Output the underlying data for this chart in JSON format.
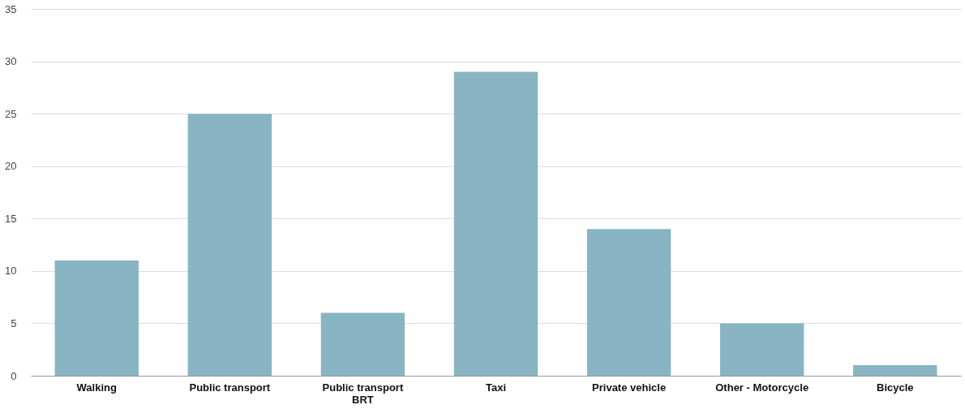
{
  "chart_data": {
    "type": "bar",
    "categories": [
      "Walking",
      "Public transport",
      "Public transport BRT",
      "Taxi",
      "Private vehicle",
      "Other - Motorcycle",
      "Bicycle"
    ],
    "values": [
      11,
      25,
      6,
      29,
      14,
      5,
      1
    ],
    "color": "#88b4c4",
    "ylim": [
      0,
      35
    ],
    "yticks": [
      0,
      5,
      10,
      15,
      20,
      25,
      30,
      35
    ],
    "grid": "y"
  }
}
